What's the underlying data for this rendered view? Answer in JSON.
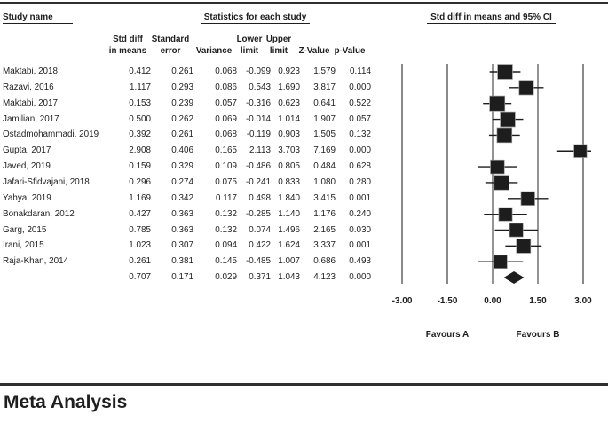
{
  "header": {
    "study_name_label": "Study name",
    "stats_title": "Statistics for each study",
    "plot_title": "Std diff in means and 95% CI",
    "columns": [
      {
        "line1": "Std diff",
        "line2": "in means"
      },
      {
        "line1": "Standard",
        "line2": "error"
      },
      {
        "line1": "",
        "line2": "Variance"
      },
      {
        "line1": "Lower",
        "line2": "limit"
      },
      {
        "line1": "Upper",
        "line2": "limit"
      },
      {
        "line1": "",
        "line2": "Z-Value"
      },
      {
        "line1": "",
        "line2": "p-Value"
      }
    ]
  },
  "chart_data": {
    "type": "forest",
    "xlabel": "Std diff in means",
    "xlim": [
      -3,
      3
    ],
    "x_ticks": [
      -3.0,
      -1.5,
      0.0,
      1.5,
      3.0
    ],
    "x_tick_labels": [
      "-3.00",
      "-1.50",
      "0.00",
      "1.50",
      "3.00"
    ],
    "favours_left": "Favours A",
    "favours_right": "Favours B",
    "studies": [
      {
        "name": "Maktabi, 2018",
        "std_diff": 0.412,
        "std_err": 0.261,
        "variance": 0.068,
        "lower": -0.099,
        "upper": 0.923,
        "z": 1.579,
        "p": 0.114
      },
      {
        "name": "Razavi, 2016",
        "std_diff": 1.117,
        "std_err": 0.293,
        "variance": 0.086,
        "lower": 0.543,
        "upper": 1.69,
        "z": 3.817,
        "p": 0.0
      },
      {
        "name": "Maktabi, 2017",
        "std_diff": 0.153,
        "std_err": 0.239,
        "variance": 0.057,
        "lower": -0.316,
        "upper": 0.623,
        "z": 0.641,
        "p": 0.522
      },
      {
        "name": "Jamilian, 2017",
        "std_diff": 0.5,
        "std_err": 0.262,
        "variance": 0.069,
        "lower": -0.014,
        "upper": 1.014,
        "z": 1.907,
        "p": 0.057
      },
      {
        "name": "Ostadmohammadi, 2019",
        "std_diff": 0.392,
        "std_err": 0.261,
        "variance": 0.068,
        "lower": -0.119,
        "upper": 0.903,
        "z": 1.505,
        "p": 0.132
      },
      {
        "name": "Gupta, 2017",
        "std_diff": 2.908,
        "std_err": 0.406,
        "variance": 0.165,
        "lower": 2.113,
        "upper": 3.703,
        "z": 7.169,
        "p": 0.0
      },
      {
        "name": "Javed, 2019",
        "std_diff": 0.159,
        "std_err": 0.329,
        "variance": 0.109,
        "lower": -0.486,
        "upper": 0.805,
        "z": 0.484,
        "p": 0.628
      },
      {
        "name": "Jafari-Sfidvajani, 2018",
        "std_diff": 0.296,
        "std_err": 0.274,
        "variance": 0.075,
        "lower": -0.241,
        "upper": 0.833,
        "z": 1.08,
        "p": 0.28
      },
      {
        "name": "Yahya, 2019",
        "std_diff": 1.169,
        "std_err": 0.342,
        "variance": 0.117,
        "lower": 0.498,
        "upper": 1.84,
        "z": 3.415,
        "p": 0.001
      },
      {
        "name": "Bonakdaran, 2012",
        "std_diff": 0.427,
        "std_err": 0.363,
        "variance": 0.132,
        "lower": -0.285,
        "upper": 1.14,
        "z": 1.176,
        "p": 0.24
      },
      {
        "name": "Garg, 2015",
        "std_diff": 0.785,
        "std_err": 0.363,
        "variance": 0.132,
        "lower": 0.074,
        "upper": 1.496,
        "z": 2.165,
        "p": 0.03
      },
      {
        "name": "Irani, 2015",
        "std_diff": 1.023,
        "std_err": 0.307,
        "variance": 0.094,
        "lower": 0.422,
        "upper": 1.624,
        "z": 3.337,
        "p": 0.001
      },
      {
        "name": "Raja-Khan, 2014",
        "std_diff": 0.261,
        "std_err": 0.381,
        "variance": 0.145,
        "lower": -0.485,
        "upper": 1.007,
        "z": 0.686,
        "p": 0.493
      }
    ],
    "overall": {
      "name": "",
      "std_diff": 0.707,
      "std_err": 0.171,
      "variance": 0.029,
      "lower": 0.371,
      "upper": 1.043,
      "z": 4.123,
      "p": 0.0
    },
    "colors": {
      "marker": "#1d1d1d",
      "ci_line": "#1d1d1d",
      "grid_outer": "#8a8a8a",
      "grid_inner": "#3c3c3c",
      "text": "#1f1f1f"
    }
  },
  "footer": {
    "title": "Meta Analysis"
  }
}
